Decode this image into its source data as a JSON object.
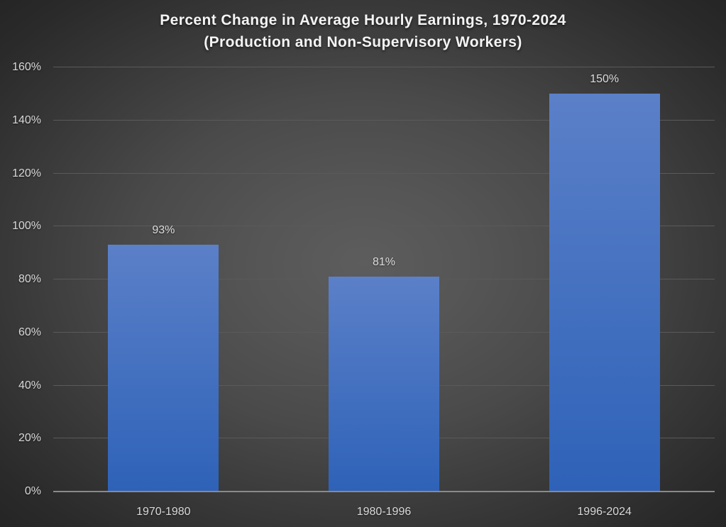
{
  "chart_data": {
    "type": "bar",
    "title_line1": "Percent Change in Average Hourly Earnings, 1970-2024",
    "title_line2": "(Production and Non-Supervisory Workers)",
    "categories": [
      "1970-1980",
      "1980-1996",
      "1996-2024"
    ],
    "values": [
      93,
      81,
      150
    ],
    "data_labels": [
      "93%",
      "81%",
      "150%"
    ],
    "xlabel": "",
    "ylabel": "",
    "ylim": [
      0,
      160
    ],
    "y_tick_step": 20,
    "y_ticks": [
      {
        "value": 0,
        "label": "0%"
      },
      {
        "value": 20,
        "label": "20%"
      },
      {
        "value": 40,
        "label": "40%"
      },
      {
        "value": 60,
        "label": "60%"
      },
      {
        "value": 80,
        "label": "80%"
      },
      {
        "value": 100,
        "label": "100%"
      },
      {
        "value": 120,
        "label": "120%"
      },
      {
        "value": 140,
        "label": "140%"
      },
      {
        "value": 160,
        "label": "160%"
      }
    ],
    "grid": true,
    "legend": false,
    "colors": {
      "bar_gradient_top": "#5b80c8",
      "bar_gradient_bottom": "#2e62b8",
      "background_center": "#5d5d5d",
      "background_edge": "#252525",
      "gridline": "#5a5a5a",
      "axis_line": "#8a8a8a",
      "axis_label_text": "#d9d9d9",
      "data_label_text": "#dcdcdc",
      "title_text": "#f4f4f4"
    }
  }
}
